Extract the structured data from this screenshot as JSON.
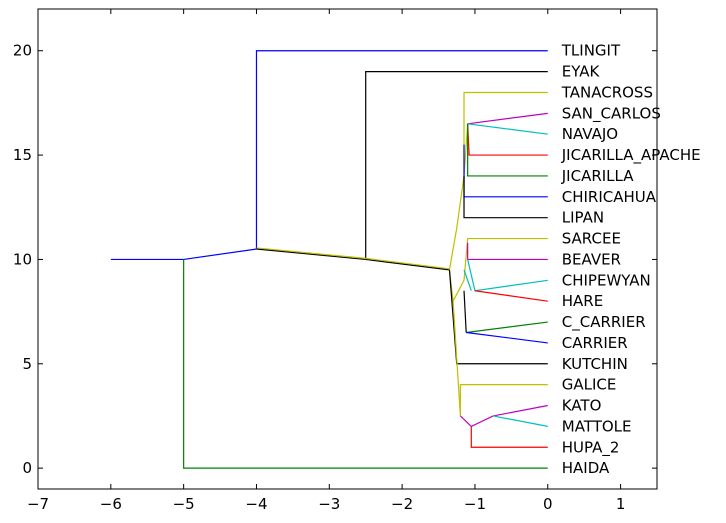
{
  "chart_data": {
    "type": "dendrogram",
    "xlim": [
      -7,
      1.5
    ],
    "ylim": [
      -1,
      22
    ],
    "xticks": [
      -7,
      -6,
      -5,
      -4,
      -3,
      -2,
      -1,
      0,
      1
    ],
    "xtick_labels": [
      "−7",
      "−6",
      "−5",
      "−4",
      "−3",
      "−2",
      "−1",
      "0",
      "1"
    ],
    "yticks": [
      0,
      5,
      10,
      15,
      20
    ],
    "ytick_labels": [
      "0",
      "5",
      "10",
      "15",
      "20"
    ],
    "grid": false,
    "leaves": [
      {
        "label": "TLINGIT",
        "y": 20
      },
      {
        "label": "EYAK",
        "y": 19
      },
      {
        "label": "TANACROSS",
        "y": 18
      },
      {
        "label": "SAN_CARLOS",
        "y": 17
      },
      {
        "label": "NAVAJO",
        "y": 16
      },
      {
        "label": "JICARILLA_APACHE",
        "y": 15
      },
      {
        "label": "JICARILLA",
        "y": 14
      },
      {
        "label": "CHIRICAHUA",
        "y": 13
      },
      {
        "label": "LIPAN",
        "y": 12
      },
      {
        "label": "SARCEE",
        "y": 11
      },
      {
        "label": "BEAVER",
        "y": 10
      },
      {
        "label": "CHIPEWYAN",
        "y": 9
      },
      {
        "label": "HARE",
        "y": 8
      },
      {
        "label": "C_CARRIER",
        "y": 7
      },
      {
        "label": "CARRIER",
        "y": 6
      },
      {
        "label": "KUTCHIN",
        "y": 5
      },
      {
        "label": "GALICE",
        "y": 4
      },
      {
        "label": "KATO",
        "y": 3
      },
      {
        "label": "MATTOLE",
        "y": 2
      },
      {
        "label": "HUPA_2",
        "y": 1
      },
      {
        "label": "HAIDA",
        "y": 0
      }
    ],
    "edges": [
      {
        "color": "#0000ff",
        "points": [
          [
            -6,
            10
          ],
          [
            -5,
            10
          ]
        ]
      },
      {
        "color": "#008000",
        "points": [
          [
            -5,
            10
          ],
          [
            -5,
            0
          ],
          [
            0,
            0
          ]
        ]
      },
      {
        "color": "#0000ff",
        "points": [
          [
            -5,
            10
          ],
          [
            -4,
            10.5
          ]
        ]
      },
      {
        "color": "#0000ff",
        "points": [
          [
            -4,
            10.5
          ],
          [
            -4,
            20
          ],
          [
            0,
            20
          ]
        ]
      },
      {
        "color": "#000000",
        "points": [
          [
            -4,
            10.5
          ],
          [
            -2.5,
            10
          ]
        ]
      },
      {
        "color": "#000000",
        "points": [
          [
            -2.5,
            10
          ],
          [
            -2.5,
            19
          ],
          [
            0,
            19
          ]
        ]
      },
      {
        "color": "#000000",
        "points": [
          [
            -2.5,
            10
          ],
          [
            -1.35,
            9.5
          ]
        ]
      },
      {
        "color": "#bfbf00",
        "points": [
          [
            -4,
            10.55
          ],
          [
            -2.5,
            10.05
          ],
          [
            -1.35,
            9.55
          ]
        ]
      },
      {
        "color": "#bfbf00",
        "points": [
          [
            -1.35,
            9.5
          ],
          [
            -1.25,
            11.5
          ],
          [
            -1.15,
            14
          ],
          [
            -1.1,
            16.5
          ]
        ]
      },
      {
        "color": "#bfbf00",
        "points": [
          [
            -1.15,
            14
          ],
          [
            -1.15,
            18
          ],
          [
            0,
            18
          ]
        ]
      },
      {
        "color": "#bf00bf",
        "points": [
          [
            -1.1,
            16.5
          ],
          [
            0,
            17
          ]
        ]
      },
      {
        "color": "#00bfbf",
        "points": [
          [
            -1.1,
            16.5
          ],
          [
            0,
            16
          ]
        ]
      },
      {
        "color": "#ff0000",
        "points": [
          [
            -1.1,
            16.5
          ],
          [
            -1.08,
            15
          ],
          [
            0,
            15
          ]
        ]
      },
      {
        "color": "#008000",
        "points": [
          [
            -1.1,
            16.5
          ],
          [
            -1.1,
            14
          ],
          [
            0,
            14
          ]
        ]
      },
      {
        "color": "#0000ff",
        "points": [
          [
            -1.15,
            15.5
          ],
          [
            -1.15,
            13
          ],
          [
            0,
            13
          ]
        ]
      },
      {
        "color": "#000000",
        "points": [
          [
            -1.15,
            14
          ],
          [
            -1.15,
            12
          ],
          [
            0,
            12
          ]
        ]
      },
      {
        "color": "#bfbf00",
        "points": [
          [
            -1.35,
            9.5
          ],
          [
            -1.3,
            8
          ],
          [
            -1.15,
            9
          ],
          [
            -1.1,
            11
          ],
          [
            0,
            11
          ]
        ]
      },
      {
        "color": "#bf00bf",
        "points": [
          [
            -1.1,
            10.8
          ],
          [
            -1.1,
            10
          ],
          [
            0,
            10
          ]
        ]
      },
      {
        "color": "#00bfbf",
        "points": [
          [
            -1.1,
            10
          ],
          [
            -1.0,
            8.5
          ],
          [
            0,
            9
          ]
        ]
      },
      {
        "color": "#ff0000",
        "points": [
          [
            -1.0,
            8.5
          ],
          [
            0,
            8
          ]
        ]
      },
      {
        "color": "#00bfbf",
        "points": [
          [
            -1.15,
            9.5
          ],
          [
            -1.05,
            8.5
          ]
        ]
      },
      {
        "color": "#000000",
        "points": [
          [
            -1.15,
            8.5
          ],
          [
            -1.12,
            6.5
          ]
        ]
      },
      {
        "color": "#008000",
        "points": [
          [
            -1.12,
            6.5
          ],
          [
            0,
            7
          ]
        ]
      },
      {
        "color": "#0000ff",
        "points": [
          [
            -1.12,
            6.5
          ],
          [
            0,
            6
          ]
        ]
      },
      {
        "color": "#000000",
        "points": [
          [
            -1.35,
            9.5
          ],
          [
            -1.25,
            5
          ],
          [
            0,
            5
          ]
        ]
      },
      {
        "color": "#bfbf00",
        "points": [
          [
            -1.3,
            8
          ],
          [
            -1.2,
            2.5
          ],
          [
            -1.2,
            4
          ],
          [
            0,
            4
          ]
        ]
      },
      {
        "color": "#bf00bf",
        "points": [
          [
            -1.2,
            2.5
          ],
          [
            -1.05,
            2
          ],
          [
            -0.75,
            2.5
          ],
          [
            0,
            3
          ]
        ]
      },
      {
        "color": "#00bfbf",
        "points": [
          [
            -0.75,
            2.5
          ],
          [
            0,
            2
          ]
        ]
      },
      {
        "color": "#ff0000",
        "points": [
          [
            -1.05,
            2
          ],
          [
            -1.05,
            1
          ],
          [
            0,
            1
          ]
        ]
      }
    ]
  }
}
